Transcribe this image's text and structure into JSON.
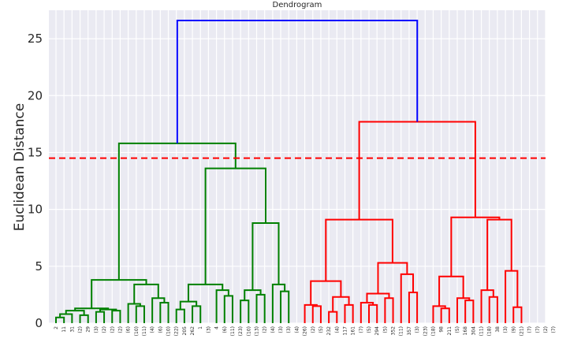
{
  "chart_data": {
    "type": "dendrogram",
    "title": "Dendrogram",
    "xlabel": "",
    "ylabel": "Euclidean Distance",
    "ylim": [
      0,
      27.5
    ],
    "yticks": [
      0,
      5,
      10,
      15,
      20,
      25
    ],
    "grid": true,
    "background_color": "#eaeaf2",
    "threshold": {
      "value": 14.5,
      "color": "#ff0000",
      "style": "dashed"
    },
    "leaf_labels": [
      "2",
      "11",
      "31",
      "(2)",
      "29",
      "(3)",
      "(2)",
      "(2)",
      "(2)",
      "(6)",
      "(10)",
      "(11)",
      "(4)",
      "(6)",
      "(10)",
      "(22)",
      "205",
      "262",
      "1",
      "(3)",
      "4",
      "(6)",
      "(11)",
      "(23)",
      "(10)",
      "(13)",
      "(2)",
      "(4)",
      "(3)",
      "(3)",
      "(4)",
      "(26)",
      "(2)",
      "(5)",
      "232",
      "(4)",
      "117",
      "161",
      "(7)",
      "(5)",
      "294",
      "(5)",
      "352",
      "(11)",
      "357",
      "(3)",
      "(23)",
      "(18)",
      "98",
      "211",
      "(5)",
      "168",
      "304",
      "(11)",
      "(18)",
      "38",
      "(3)",
      "(9)",
      "(21)",
      "(7)",
      "(7)",
      "(2)",
      "(7)"
    ],
    "links": [
      {
        "x1": 0,
        "x2": 1,
        "h": 0.5,
        "c": "#008000"
      },
      {
        "x1": 0.5,
        "x2": 2,
        "h": 0.8,
        "c": "#008000"
      },
      {
        "x1": 3,
        "x2": 4,
        "h": 0.7,
        "c": "#008000"
      },
      {
        "x1": 1.25,
        "x2": 3.5,
        "h": 1.1,
        "c": "#008000"
      },
      {
        "x1": 5,
        "x2": 6,
        "h": 1.0,
        "c": "#008000"
      },
      {
        "x1": 7,
        "x2": 8,
        "h": 1.1,
        "c": "#008000"
      },
      {
        "x1": 5.5,
        "x2": 7.5,
        "h": 1.2,
        "c": "#008000"
      },
      {
        "x1": 2.375,
        "x2": 6.5,
        "h": 1.3,
        "c": "#008000"
      },
      {
        "x1": 10,
        "x2": 11,
        "h": 1.5,
        "c": "#008000"
      },
      {
        "x1": 9,
        "x2": 10.5,
        "h": 1.7,
        "c": "#008000"
      },
      {
        "x1": 13,
        "x2": 14,
        "h": 1.8,
        "c": "#008000"
      },
      {
        "x1": 12,
        "x2": 13.5,
        "h": 2.2,
        "c": "#008000"
      },
      {
        "x1": 9.75,
        "x2": 12.75,
        "h": 3.4,
        "c": "#008000"
      },
      {
        "x1": 4.4375,
        "x2": 11.25,
        "h": 3.8,
        "c": "#008000"
      },
      {
        "x1": 15,
        "x2": 16,
        "h": 1.2,
        "c": "#008000"
      },
      {
        "x1": 17,
        "x2": 18,
        "h": 1.5,
        "c": "#008000"
      },
      {
        "x1": 15.5,
        "x2": 17.5,
        "h": 1.9,
        "c": "#008000"
      },
      {
        "x1": 21,
        "x2": 22,
        "h": 2.4,
        "c": "#008000"
      },
      {
        "x1": 20,
        "x2": 21.5,
        "h": 2.9,
        "c": "#008000"
      },
      {
        "x1": 16.5,
        "x2": 20.75,
        "h": 3.4,
        "c": "#008000"
      },
      {
        "x1": 23,
        "x2": 24,
        "h": 2.0,
        "c": "#008000"
      },
      {
        "x1": 25,
        "x2": 26,
        "h": 2.5,
        "c": "#008000"
      },
      {
        "x1": 23.5,
        "x2": 25.5,
        "h": 2.9,
        "c": "#008000"
      },
      {
        "x1": 28,
        "x2": 29,
        "h": 2.8,
        "c": "#008000"
      },
      {
        "x1": 27,
        "x2": 28.5,
        "h": 3.4,
        "c": "#008000"
      },
      {
        "x1": 24.5,
        "x2": 27.75,
        "h": 8.8,
        "c": "#008000"
      },
      {
        "x1": 18.625,
        "x2": 26.125,
        "h": 13.6,
        "c": "#008000"
      },
      {
        "x1": 7.84375,
        "x2": 22.375,
        "h": 15.8,
        "c": "#008000"
      },
      {
        "x1": 32,
        "x2": 33,
        "h": 1.5,
        "c": "#ff0000"
      },
      {
        "x1": 31,
        "x2": 32.5,
        "h": 1.6,
        "c": "#ff0000"
      },
      {
        "x1": 34,
        "x2": 35,
        "h": 1.0,
        "c": "#ff0000"
      },
      {
        "x1": 36,
        "x2": 37,
        "h": 1.6,
        "c": "#ff0000"
      },
      {
        "x1": 34.5,
        "x2": 36.5,
        "h": 2.3,
        "c": "#ff0000"
      },
      {
        "x1": 31.75,
        "x2": 35.5,
        "h": 3.7,
        "c": "#ff0000"
      },
      {
        "x1": 39,
        "x2": 40,
        "h": 1.6,
        "c": "#ff0000"
      },
      {
        "x1": 38,
        "x2": 39.5,
        "h": 1.8,
        "c": "#ff0000"
      },
      {
        "x1": 41,
        "x2": 42,
        "h": 2.2,
        "c": "#ff0000"
      },
      {
        "x1": 38.75,
        "x2": 41.5,
        "h": 2.6,
        "c": "#ff0000"
      },
      {
        "x1": 44,
        "x2": 45,
        "h": 2.7,
        "c": "#ff0000"
      },
      {
        "x1": 43,
        "x2": 44.5,
        "h": 4.3,
        "c": "#ff0000"
      },
      {
        "x1": 40.125,
        "x2": 43.75,
        "h": 5.3,
        "c": "#ff0000"
      },
      {
        "x1": 33.625,
        "x2": 41.9375,
        "h": 9.1,
        "c": "#ff0000"
      },
      {
        "x1": 48,
        "x2": 49,
        "h": 1.3,
        "c": "#ff0000"
      },
      {
        "x1": 47,
        "x2": 48.5,
        "h": 1.5,
        "c": "#ff0000"
      },
      {
        "x1": 51,
        "x2": 52,
        "h": 2.0,
        "c": "#ff0000"
      },
      {
        "x1": 50,
        "x2": 51.5,
        "h": 2.2,
        "c": "#ff0000"
      },
      {
        "x1": 47.75,
        "x2": 50.75,
        "h": 4.1,
        "c": "#ff0000"
      },
      {
        "x1": 54,
        "x2": 55,
        "h": 2.3,
        "c": "#ff0000"
      },
      {
        "x1": 53,
        "x2": 54.5,
        "h": 2.9,
        "c": "#ff0000"
      },
      {
        "x1": 57,
        "x2": 58,
        "h": 1.4,
        "c": "#ff0000"
      },
      {
        "x1": 56,
        "x2": 57.5,
        "h": 4.6,
        "c": "#ff0000"
      },
      {
        "x1": 53.75,
        "x2": 56.75,
        "h": 9.1,
        "c": "#ff0000"
      },
      {
        "x1": 49.25,
        "x2": 55.25,
        "h": 9.3,
        "c": "#ff0000"
      },
      {
        "x1": 37.78125,
        "x2": 52.25,
        "h": 17.7,
        "c": "#ff0000"
      },
      {
        "x1": 15.109375,
        "x2": 45.015625,
        "h": 26.6,
        "c": "#0000ff"
      }
    ]
  }
}
